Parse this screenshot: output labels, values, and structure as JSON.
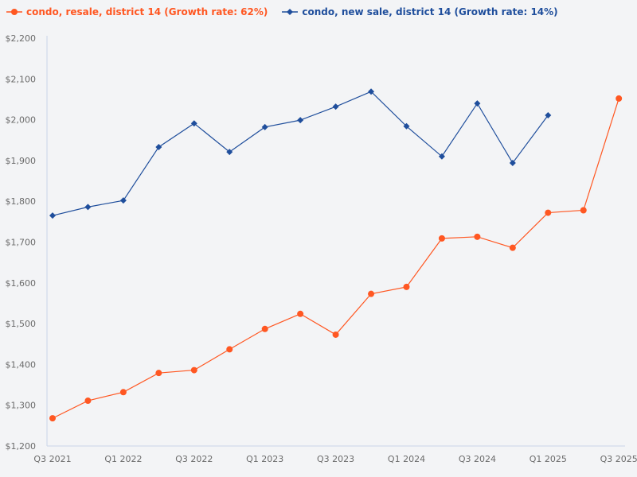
{
  "legend": {
    "items": [
      {
        "label": "condo, resale, district 14 (Growth rate: 62%)",
        "color": "#ff5722",
        "marker": "circle"
      },
      {
        "label": "condo, new sale, district 14 (Growth rate: 14%)",
        "color": "#1f4e9c",
        "marker": "diamond"
      }
    ]
  },
  "colors": {
    "background": "#f3f4f6",
    "axis": "#c9d5e8",
    "tick_text": "#6b6b6b",
    "resale": "#ff5722",
    "new_sale": "#1f4e9c"
  },
  "chart_data": {
    "type": "line",
    "title": "",
    "xlabel": "",
    "ylabel": "",
    "ylim": [
      1200,
      2200
    ],
    "yticks": [
      "$1,200",
      "$1,300",
      "$1,400",
      "$1,500",
      "$1,600",
      "$1,700",
      "$1,800",
      "$1,900",
      "$2,000",
      "$2,100",
      "$2,200"
    ],
    "ytick_values": [
      1200,
      1300,
      1400,
      1500,
      1600,
      1700,
      1800,
      1900,
      2000,
      2100,
      2200
    ],
    "xticks": [
      "Q3 2021",
      "Q1 2022",
      "Q3 2022",
      "Q1 2023",
      "Q3 2023",
      "Q1 2024",
      "Q3 2024",
      "Q1 2025",
      "Q3 2025"
    ],
    "categories": [
      "Q3 2021",
      "Q4 2021",
      "Q1 2022",
      "Q2 2022",
      "Q3 2022",
      "Q4 2022",
      "Q1 2023",
      "Q2 2023",
      "Q3 2023",
      "Q4 2023",
      "Q1 2024",
      "Q2 2024",
      "Q3 2024",
      "Q4 2024",
      "Q1 2025",
      "Q2 2025",
      "Q3 2025"
    ],
    "grid": false,
    "legend_position": "top-left",
    "series": [
      {
        "name": "condo, resale, district 14 (Growth rate: 62%)",
        "color": "#ff5722",
        "marker": "circle",
        "values": [
          1268,
          1311,
          1332,
          1379,
          1386,
          1437,
          1487,
          1524,
          1473,
          1573,
          1590,
          1709,
          1713,
          1686,
          1772,
          1778,
          2052
        ]
      },
      {
        "name": "condo, new sale, district 14 (Growth rate: 14%)",
        "color": "#1f4e9c",
        "marker": "diamond",
        "values": [
          1765,
          1786,
          1802,
          1933,
          1991,
          1921,
          1982,
          1999,
          2032,
          2069,
          1984,
          1910,
          2040,
          1894,
          2011,
          null,
          null
        ]
      }
    ]
  }
}
